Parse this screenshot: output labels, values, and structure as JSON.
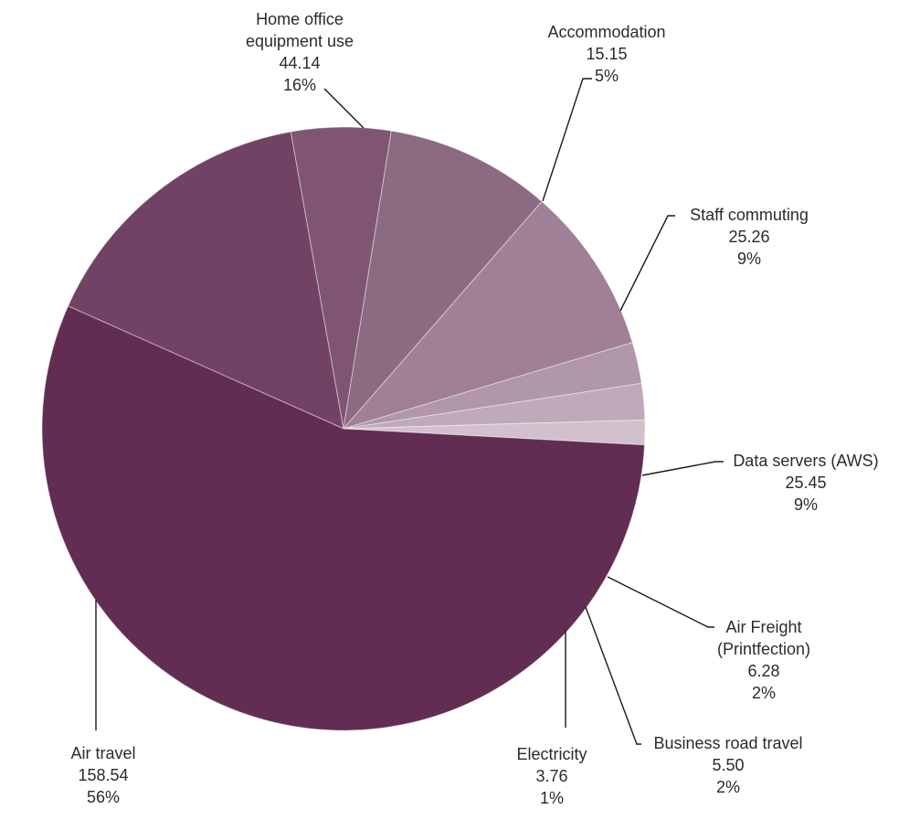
{
  "chart_data": {
    "type": "pie",
    "title": "",
    "slices": [
      {
        "label_lines": [
          "Home office",
          "equipment use"
        ],
        "value": 44.14,
        "value_text": "44.14",
        "percent_text": "16%",
        "color": "#724264"
      },
      {
        "label_lines": [
          "Accommodation"
        ],
        "value": 15.15,
        "value_text": "15.15",
        "percent_text": "5%",
        "color": "#7f5572"
      },
      {
        "label_lines": [
          "Staff commuting"
        ],
        "value": 25.26,
        "value_text": "25.26",
        "percent_text": "9%",
        "color": "#8c6a82"
      },
      {
        "label_lines": [
          "Data servers (AWS)"
        ],
        "value": 25.45,
        "value_text": "25.45",
        "percent_text": "9%",
        "color": "#a08096"
      },
      {
        "label_lines": [
          "Air Freight",
          "(Printfection)"
        ],
        "value": 6.28,
        "value_text": "6.28",
        "percent_text": "2%",
        "color": "#b097a9"
      },
      {
        "label_lines": [
          "Business road travel"
        ],
        "value": 5.5,
        "value_text": "5.50",
        "percent_text": "2%",
        "color": "#c0a9ba"
      },
      {
        "label_lines": [
          "Electricity"
        ],
        "value": 3.76,
        "value_text": "3.76",
        "percent_text": "1%",
        "color": "#d2c1cd"
      },
      {
        "label_lines": [
          "Air travel"
        ],
        "value": 158.54,
        "value_text": "158.54",
        "percent_text": "56%",
        "color": "#622d52"
      }
    ]
  }
}
